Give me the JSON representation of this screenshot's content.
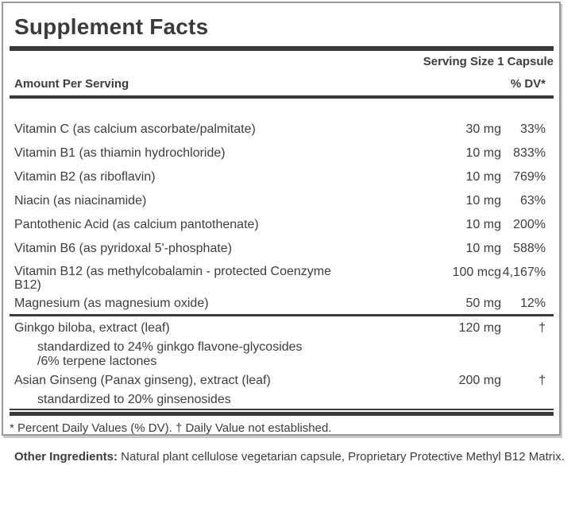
{
  "label": {
    "title": "Supplement Facts",
    "serving_size": "Serving Size 1 Capsule",
    "columns": {
      "amount_header": "Amount Per Serving",
      "dv_header": "% DV*"
    },
    "rows": [
      {
        "name": "Vitamin C (as calcium ascorbate/palmitate)",
        "amount": "30 mg",
        "dv": "33%"
      },
      {
        "name": "Vitamin B1 (as thiamin hydrochloride)",
        "amount": "10 mg",
        "dv": "833%"
      },
      {
        "name": "Vitamin B2 (as riboflavin)",
        "amount": "10 mg",
        "dv": "769%"
      },
      {
        "name": "Niacin (as niacinamide)",
        "amount": "10 mg",
        "dv": "63%"
      },
      {
        "name": "Pantothenic Acid (as calcium pantothenate)",
        "amount": "10 mg",
        "dv": "200%"
      },
      {
        "name": "Vitamin B6 (as pyridoxal 5'-phosphate)",
        "amount": "10 mg",
        "dv": "588%"
      },
      {
        "name": "Vitamin B12 (as methylcobalamin - protected Coenzyme B12)",
        "amount": "100 mcg",
        "dv": "4,167%"
      },
      {
        "name": "Magnesium (as magnesium oxide)",
        "amount": "50 mg",
        "dv": "12%"
      }
    ],
    "botanicals": [
      {
        "name": "Ginkgo biloba, extract (leaf)",
        "amount": "120 mg",
        "dv": "†",
        "notes": [
          "standardized to 24% ginkgo flavone-glycosides",
          "/6% terpene lactones"
        ]
      },
      {
        "name": "Asian Ginseng (Panax ginseng), extract (leaf)",
        "amount": "200 mg",
        "dv": "†",
        "notes": [
          "standardized to 20% ginsenosides"
        ]
      }
    ],
    "footnote": "* Percent Daily Values (% DV). † Daily Value not established."
  },
  "other_ingredients": {
    "label": "Other Ingredients:",
    "text": " Natural plant cellulose vegetarian capsule, Proprietary Protective Methyl B12 Matrix."
  },
  "colors": {
    "text": "#3d3d3d",
    "rule": "#3a3a3a",
    "border": "#9a9a9a",
    "shadow": "#c9c9c9",
    "background": "#ffffff"
  }
}
